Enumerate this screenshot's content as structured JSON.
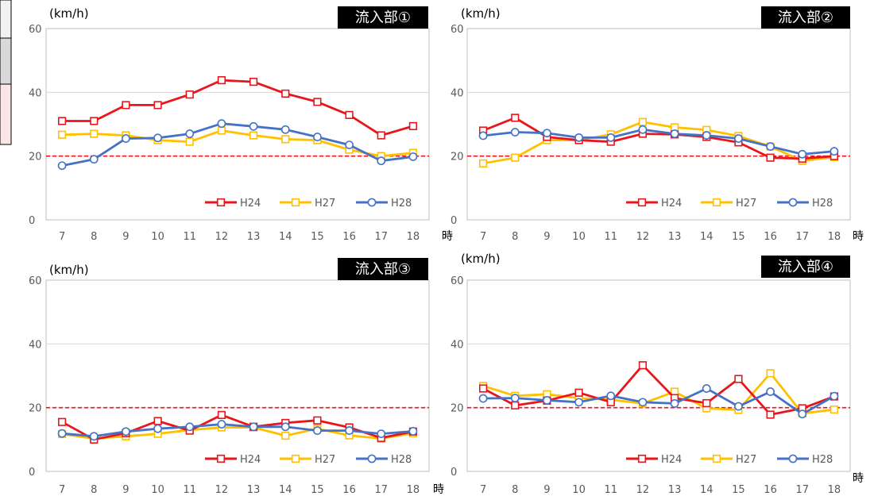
{
  "series_names": [
    "H24",
    "H27",
    "H28"
  ],
  "colors": {
    "H24": "#e8161b",
    "H27": "#ffc000",
    "H28": "#4472c4",
    "reference": "#e8161b",
    "grid": "#d9d9d9",
    "axis_text": "#595959"
  },
  "left_table_fragment": {
    "fills": [
      "#f2f2f2",
      "#d9d9d9",
      "#fbe5e6"
    ]
  },
  "chart_data": [
    {
      "type": "line",
      "title": "流入部①",
      "ylabel": "(km/h)",
      "x_unit": "時",
      "x": [
        7,
        8,
        9,
        10,
        11,
        12,
        13,
        14,
        15,
        16,
        17,
        18
      ],
      "ylim": [
        0,
        60
      ],
      "yticks": [
        0,
        20,
        40,
        60
      ],
      "reference_line": 20,
      "grid": "horizontal",
      "legend": "bottom-right",
      "series": [
        {
          "name": "H24",
          "marker": "square",
          "values": [
            31,
            31,
            36,
            36,
            39.3,
            43.8,
            43.3,
            39.6,
            37,
            32.9,
            26.5,
            29.4
          ]
        },
        {
          "name": "H27",
          "marker": "square",
          "values": [
            26.7,
            27,
            26.5,
            25,
            24.5,
            28,
            26.5,
            25.3,
            25,
            22,
            20,
            21
          ]
        },
        {
          "name": "H28",
          "marker": "circle",
          "values": [
            17,
            19,
            25.5,
            25.7,
            27,
            30.2,
            29.3,
            28.3,
            26,
            23.5,
            18.5,
            19.8
          ]
        }
      ]
    },
    {
      "type": "line",
      "title": "流入部②",
      "ylabel": "(km/h)",
      "x_unit": "時",
      "x": [
        7,
        8,
        9,
        10,
        11,
        12,
        13,
        14,
        15,
        16,
        17,
        18
      ],
      "ylim": [
        0,
        60
      ],
      "yticks": [
        0,
        20,
        40,
        60
      ],
      "reference_line": 20,
      "grid": "horizontal",
      "legend": "bottom-right",
      "series": [
        {
          "name": "H24",
          "marker": "square",
          "values": [
            28,
            32,
            26,
            25,
            24.5,
            27,
            26.8,
            26,
            24.3,
            19.5,
            19.2,
            20
          ]
        },
        {
          "name": "H27",
          "marker": "square",
          "values": [
            17.7,
            19.5,
            25,
            25,
            26.8,
            30.7,
            29,
            28.2,
            26.3,
            23,
            18.5,
            19.7
          ]
        },
        {
          "name": "H28",
          "marker": "circle",
          "values": [
            26.4,
            27.5,
            27.2,
            25.8,
            25.8,
            28.3,
            27,
            26.5,
            25.5,
            23,
            20.6,
            21.5
          ]
        }
      ]
    },
    {
      "type": "line",
      "title": "流入部③",
      "ylabel": "(km/h)",
      "x_unit": "時",
      "x": [
        7,
        8,
        9,
        10,
        11,
        12,
        13,
        14,
        15,
        16,
        17,
        18
      ],
      "ylim": [
        0,
        60
      ],
      "yticks": [
        0,
        20,
        40,
        60
      ],
      "reference_line": 20,
      "grid": "horizontal",
      "legend": "bottom-right",
      "series": [
        {
          "name": "H24",
          "marker": "square",
          "values": [
            15.5,
            10,
            12,
            15.8,
            12.8,
            17.7,
            14,
            15.2,
            16,
            13.8,
            10.5,
            12.5
          ]
        },
        {
          "name": "H27",
          "marker": "square",
          "values": [
            11.7,
            10.3,
            11,
            11.8,
            13,
            13.8,
            13.8,
            11.2,
            13.4,
            11.3,
            10.3,
            12
          ]
        },
        {
          "name": "H28",
          "marker": "circle",
          "values": [
            11.9,
            11,
            12.5,
            13.4,
            14,
            14.8,
            14,
            14,
            12.8,
            12.8,
            11.8,
            12.6
          ]
        }
      ]
    },
    {
      "type": "line",
      "title": "流入部④",
      "ylabel": "(km/h)",
      "x_unit": "時",
      "x": [
        7,
        8,
        9,
        10,
        11,
        12,
        13,
        14,
        15,
        16,
        17,
        18
      ],
      "ylim": [
        0,
        60
      ],
      "yticks": [
        0,
        20,
        40,
        60
      ],
      "reference_line": 20,
      "grid": "horizontal",
      "legend": "bottom-right",
      "series": [
        {
          "name": "H24",
          "marker": "square",
          "values": [
            26,
            20.7,
            22.2,
            24.7,
            21.7,
            33.3,
            23,
            21.4,
            29,
            17.8,
            19.8,
            23.5
          ]
        },
        {
          "name": "H27",
          "marker": "square",
          "values": [
            26.8,
            23.7,
            24.2,
            23,
            22.5,
            21.3,
            25,
            19.8,
            19.3,
            30.8,
            18.2,
            19.4
          ]
        },
        {
          "name": "H28",
          "marker": "circle",
          "values": [
            22.9,
            23,
            22.3,
            21.7,
            23.7,
            21.7,
            21.3,
            26,
            20.4,
            25,
            18,
            23.6
          ]
        }
      ]
    }
  ]
}
